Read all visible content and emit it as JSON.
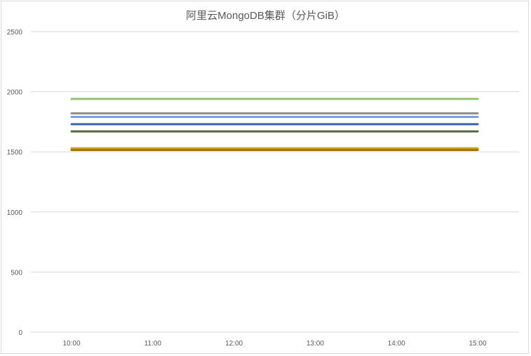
{
  "chart_data": {
    "type": "line",
    "title": "阿里云MongoDB集群（分片GiB）",
    "categories": [
      "10:00",
      "11:00",
      "12:00",
      "13:00",
      "14:00",
      "15:00"
    ],
    "ylim": [
      0,
      2500
    ],
    "yticks": [
      0,
      500,
      1000,
      1500,
      2000,
      2500
    ],
    "grid": true,
    "legend": "none",
    "series": [
      {
        "color": "#8fc46a",
        "values": [
          1940,
          1940,
          1940,
          1940,
          1940,
          1940
        ]
      },
      {
        "color": "#8c8c8c",
        "values": [
          1820,
          1820,
          1820,
          1820,
          1820,
          1820
        ]
      },
      {
        "color": "#7aa0dc",
        "values": [
          1790,
          1790,
          1790,
          1790,
          1790,
          1790
        ]
      },
      {
        "color": "#3c63ad",
        "values": [
          1730,
          1730,
          1730,
          1730,
          1730,
          1730
        ]
      },
      {
        "color": "#4f6b3a",
        "values": [
          1670,
          1670,
          1670,
          1670,
          1670,
          1670
        ]
      },
      {
        "color": "#d4a615",
        "values": [
          1530,
          1530,
          1530,
          1530,
          1530,
          1530
        ]
      },
      {
        "color": "#9a7212",
        "values": [
          1515,
          1515,
          1515,
          1515,
          1515,
          1515
        ]
      }
    ]
  }
}
